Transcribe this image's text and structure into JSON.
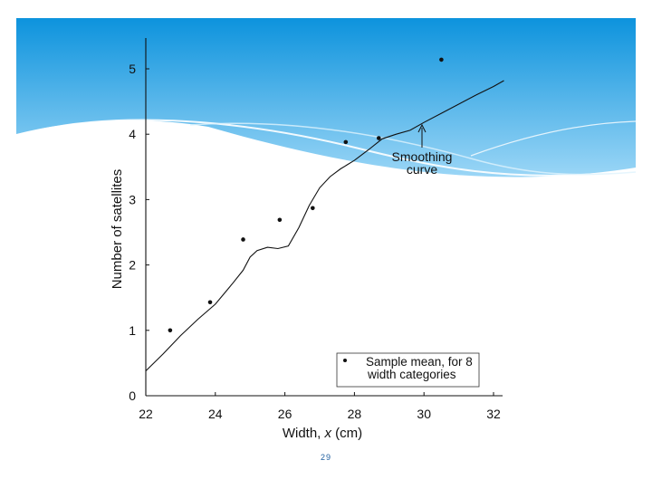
{
  "slide": {
    "page_number": "29",
    "colors": {
      "banner_top": "#0d93dd",
      "banner_bottom": "#9bd6f6",
      "wave": "#ffffff"
    }
  },
  "chart_data": {
    "type": "scatter",
    "xlabel": "Width, x (cm)",
    "ylabel": "Number of satellites",
    "xlim": [
      22,
      32
    ],
    "ylim": [
      0,
      5.5
    ],
    "xticks": [
      22,
      24,
      26,
      28,
      30,
      32
    ],
    "yticks": [
      0,
      1,
      2,
      3,
      4,
      5
    ],
    "grid": false,
    "legend_position": "bottom-right",
    "legend_text": [
      "Sample mean,  for 8",
      "width categories"
    ],
    "annotation": [
      "Smoothing",
      "curve"
    ],
    "series": [
      {
        "name": "Sample mean,  for 8 width categories",
        "kind": "points",
        "x": [
          22.7,
          23.85,
          24.8,
          25.85,
          26.8,
          27.75,
          28.7,
          30.5
        ],
        "y": [
          1.0,
          1.43,
          2.39,
          2.69,
          2.87,
          3.88,
          3.94,
          5.14
        ]
      },
      {
        "name": "Smoothing curve",
        "kind": "line",
        "x": [
          22.0,
          22.5,
          23.0,
          23.5,
          24.0,
          24.5,
          24.8,
          25.0,
          25.2,
          25.5,
          25.8,
          26.1,
          26.4,
          26.7,
          27.0,
          27.3,
          27.6,
          28.0,
          28.4,
          28.8,
          29.2,
          29.6,
          30.0,
          30.5,
          31.0,
          31.5,
          32.0,
          32.3
        ],
        "y": [
          0.38,
          0.64,
          0.92,
          1.17,
          1.4,
          1.72,
          1.92,
          2.12,
          2.22,
          2.27,
          2.25,
          2.29,
          2.57,
          2.91,
          3.18,
          3.35,
          3.47,
          3.6,
          3.76,
          3.93,
          4.0,
          4.06,
          4.18,
          4.32,
          4.46,
          4.6,
          4.73,
          4.82
        ]
      }
    ]
  }
}
